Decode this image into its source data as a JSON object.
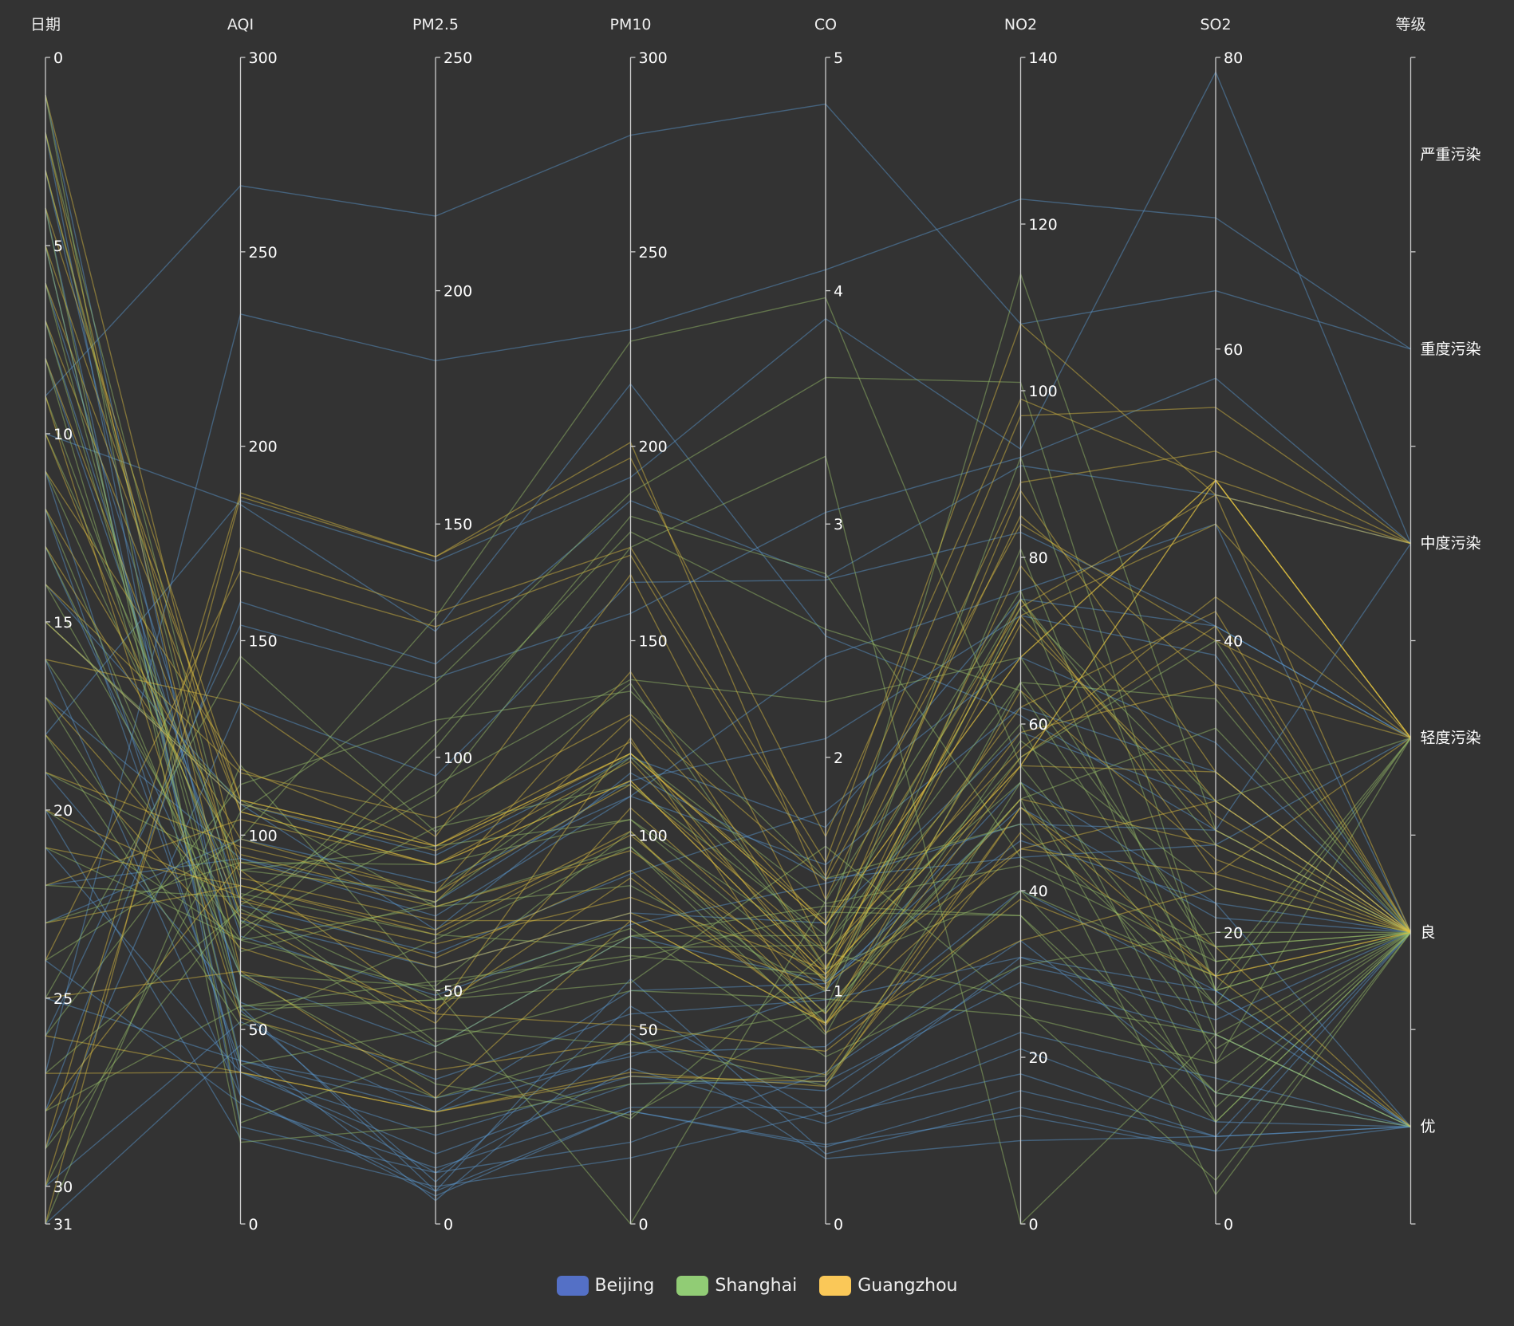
{
  "chart_data": {
    "type": "parallel",
    "axes": [
      {
        "key": "date",
        "name": "日期",
        "min": 0,
        "max": 31,
        "inverse": true,
        "ticks": [
          "0",
          "5",
          "10",
          "15",
          "20",
          "25",
          "30",
          "31"
        ]
      },
      {
        "key": "aqi",
        "name": "AQI",
        "min": 0,
        "max": 300,
        "ticks": [
          "0",
          "50",
          "100",
          "150",
          "200",
          "250",
          "300"
        ]
      },
      {
        "key": "pm25",
        "name": "PM2.5",
        "min": 0,
        "max": 250,
        "ticks": [
          "0",
          "50",
          "100",
          "150",
          "200",
          "250"
        ]
      },
      {
        "key": "pm10",
        "name": "PM10",
        "min": 0,
        "max": 300,
        "ticks": [
          "0",
          "50",
          "100",
          "150",
          "200",
          "250",
          "300"
        ]
      },
      {
        "key": "co",
        "name": "CO",
        "min": 0,
        "max": 5,
        "ticks": [
          "0",
          "1",
          "2",
          "3",
          "4",
          "5"
        ]
      },
      {
        "key": "no2",
        "name": "NO2",
        "min": 0,
        "max": 140,
        "ticks": [
          "0",
          "20",
          "40",
          "60",
          "80",
          "100",
          "120",
          "140"
        ]
      },
      {
        "key": "so2",
        "name": "SO2",
        "min": 0,
        "max": 80,
        "ticks": [
          "0",
          "20",
          "40",
          "60",
          "80"
        ]
      },
      {
        "key": "level",
        "name": "等级",
        "categorical": true,
        "categories": [
          "严重污染",
          "重度污染",
          "中度污染",
          "轻度污染",
          "良",
          "优"
        ]
      }
    ],
    "legend_position": "bottom-center",
    "pollution_colors": [
      "#93ce07",
      "#fbdb0f",
      "#fc7d02",
      "#fd0100",
      "#aa069f",
      "#ac3b2a"
    ],
    "series": [
      {
        "name": "Beijing",
        "legend_color": "#5470c6",
        "line_color": "#5b9bd5",
        "data": [
          [
            1,
            55,
            9,
            56,
            0.46,
            18,
            6,
            "良"
          ],
          [
            2,
            25,
            11,
            21,
            0.65,
            34,
            9,
            "优"
          ],
          [
            3,
            56,
            7,
            63,
            0.3,
            14,
            5,
            "良"
          ],
          [
            4,
            33,
            7,
            29,
            0.33,
            16,
            6,
            "优"
          ],
          [
            5,
            42,
            24,
            44,
            0.76,
            40,
            16,
            "优"
          ],
          [
            6,
            82,
            58,
            90,
            1.77,
            68,
            33,
            "良"
          ],
          [
            7,
            74,
            49,
            77,
            1.46,
            48,
            27,
            "良"
          ],
          [
            8,
            78,
            55,
            80,
            1.29,
            59,
            29,
            "良"
          ],
          [
            9,
            267,
            216,
            280,
            4.8,
            108,
            64,
            "重度污染"
          ],
          [
            10,
            185,
            127,
            216,
            2.52,
            61,
            27,
            "中度污染"
          ],
          [
            11,
            39,
            19,
            38,
            0.57,
            31,
            15,
            "优"
          ],
          [
            12,
            41,
            11,
            40,
            0.43,
            21,
            7,
            "优"
          ],
          [
            13,
            64,
            38,
            74,
            1.04,
            46,
            22,
            "良"
          ],
          [
            14,
            108,
            79,
            120,
            1.7,
            75,
            41,
            "轻度污染"
          ],
          [
            15,
            108,
            63,
            116,
            1.48,
            44,
            26,
            "轻度污染"
          ],
          [
            16,
            33,
            6,
            29,
            0.34,
            13,
            5,
            "优"
          ],
          [
            17,
            94,
            66,
            110,
            1.54,
            62,
            31,
            "良"
          ],
          [
            18,
            186,
            142,
            192,
            3.88,
            93,
            79,
            "中度污染"
          ],
          [
            19,
            57,
            31,
            54,
            0.96,
            32,
            14,
            "良"
          ],
          [
            20,
            22,
            8,
            17,
            0.48,
            23,
            10,
            "优"
          ],
          [
            21,
            39,
            15,
            36,
            0.61,
            29,
            13,
            "优"
          ],
          [
            22,
            94,
            69,
            114,
            2.08,
            73,
            39,
            "良"
          ],
          [
            23,
            99,
            73,
            110,
            2.43,
            76,
            48,
            "良"
          ],
          [
            24,
            31,
            12,
            30,
            0.5,
            32,
            16,
            "优"
          ],
          [
            25,
            42,
            27,
            43,
            1,
            53,
            22,
            "优"
          ],
          [
            26,
            154,
            117,
            157,
            3.05,
            92,
            58,
            "中度污染"
          ],
          [
            27,
            234,
            185,
            230,
            4.09,
            123,
            69,
            "重度污染"
          ],
          [
            28,
            160,
            120,
            186,
            2.77,
            91,
            50,
            "中度污染"
          ],
          [
            29,
            134,
            96,
            165,
            2.76,
            83,
            41,
            "轻度污染"
          ],
          [
            30,
            52,
            24,
            60,
            1.03,
            50,
            21,
            "良"
          ],
          [
            31,
            46,
            5,
            49,
            0.28,
            10,
            6,
            "优"
          ]
        ]
      },
      {
        "name": "Shanghai",
        "legend_color": "#91cc75",
        "line_color": "#9bc46a",
        "data": [
          [
            1,
            26,
            37,
            27,
            1.163,
            27,
            13,
            "优"
          ],
          [
            2,
            85,
            62,
            71,
            1.195,
            60,
            8,
            "良"
          ],
          [
            3,
            78,
            38,
            74,
            1.363,
            37,
            7,
            "良"
          ],
          [
            4,
            21,
            21,
            36,
            0.634,
            40,
            9,
            "优"
          ],
          [
            5,
            41,
            42,
            46,
            0.915,
            81,
            13,
            "优"
          ],
          [
            6,
            56,
            52,
            69,
            1.067,
            92,
            16,
            "良"
          ],
          [
            7,
            64,
            30,
            28,
            0.924,
            51,
            2,
            "良"
          ],
          [
            8,
            55,
            48,
            74,
            1.236,
            75,
            26,
            "良"
          ],
          [
            9,
            76,
            85,
            113,
            1.237,
            114,
            27,
            "良"
          ],
          [
            10,
            91,
            81,
            104,
            1.041,
            56,
            40,
            "良"
          ],
          [
            11,
            84,
            39,
            60,
            0.964,
            25,
            11,
            "良"
          ],
          [
            12,
            64,
            51,
            101,
            0.862,
            58,
            23,
            "良"
          ],
          [
            13,
            70,
            69,
            120,
            1.198,
            65,
            36,
            "良"
          ],
          [
            14,
            77,
            105,
            178,
            2.549,
            64,
            16,
            "良"
          ],
          [
            15,
            109,
            68,
            87,
            0.996,
            74,
            29,
            "轻度污染"
          ],
          [
            16,
            73,
            68,
            97,
            0.905,
            51,
            34,
            "良"
          ],
          [
            17,
            54,
            27,
            47,
            0.592,
            53,
            12,
            "良"
          ],
          [
            18,
            51,
            61,
            97,
            0.811,
            65,
            19,
            "良"
          ],
          [
            19,
            91,
            71,
            121,
            1.374,
            43,
            18,
            "良"
          ],
          [
            20,
            73,
            102,
            182,
            2.787,
            44,
            19,
            "良"
          ],
          [
            21,
            73,
            50,
            76,
            0.717,
            31,
            20,
            "良"
          ],
          [
            22,
            84,
            94,
            140,
            2.238,
            68,
            18,
            "良"
          ],
          [
            23,
            93,
            77,
            104,
            1.165,
            53,
            7,
            "良"
          ],
          [
            24,
            99,
            130,
            227,
            3.97,
            55,
            15,
            "良"
          ],
          [
            25,
            146,
            84,
            139,
            1.094,
            40,
            17,
            "轻度污染"
          ],
          [
            26,
            113,
            108,
            137,
            1.481,
            48,
            15,
            "轻度污染"
          ],
          [
            27,
            81,
            48,
            62,
            1.619,
            26,
            3,
            "良"
          ],
          [
            28,
            56,
            48,
            68,
            1.336,
            37,
            9,
            "良"
          ],
          [
            29,
            82,
            92,
            174,
            3.29,
            0,
            13,
            "良"
          ],
          [
            30,
            106,
            116,
            188,
            3.628,
            101,
            16,
            "轻度污染"
          ],
          [
            31,
            118,
            50,
            0,
            1.383,
            76,
            11,
            "轻度污染"
          ]
        ]
      },
      {
        "name": "Guangzhou",
        "legend_color": "#fac858",
        "line_color": "#e0c040",
        "data": [
          [
            1,
            91,
            45,
            125,
            0.82,
            34,
            23,
            "良"
          ],
          [
            2,
            65,
            27,
            78,
            0.86,
            45,
            29,
            "良"
          ],
          [
            3,
            83,
            60,
            84,
            1.09,
            73,
            27,
            "良"
          ],
          [
            4,
            109,
            81,
            121,
            1.28,
            68,
            51,
            "轻度污染"
          ],
          [
            5,
            106,
            77,
            114,
            1.07,
            55,
            51,
            "轻度污染"
          ],
          [
            6,
            109,
            81,
            121,
            1.28,
            68,
            51,
            "轻度污染"
          ],
          [
            7,
            106,
            77,
            114,
            1.07,
            55,
            51,
            "轻度污染"
          ],
          [
            8,
            89,
            65,
            78,
            0.86,
            51,
            26,
            "良"
          ],
          [
            9,
            53,
            33,
            47,
            0.64,
            50,
            17,
            "良"
          ],
          [
            10,
            80,
            55,
            80,
            1.01,
            75,
            24,
            "良"
          ],
          [
            11,
            117,
            81,
            124,
            1.03,
            45,
            24,
            "轻度污染"
          ],
          [
            12,
            99,
            71,
            142,
            1.1,
            62,
            42,
            "良"
          ],
          [
            13,
            95,
            69,
            130,
            1.28,
            74,
            50,
            "良"
          ],
          [
            14,
            116,
            87,
            131,
            1.47,
            84,
            40,
            "轻度污染"
          ],
          [
            15,
            108,
            80,
            121,
            1.3,
            85,
            37,
            "轻度污染"
          ],
          [
            16,
            134,
            83,
            167,
            1.16,
            57,
            43,
            "轻度污染"
          ],
          [
            17,
            79,
            43,
            107,
            1.05,
            59,
            37,
            "良"
          ],
          [
            18,
            71,
            46,
            89,
            0.86,
            64,
            25,
            "良"
          ],
          [
            19,
            97,
            71,
            113,
            1.17,
            88,
            31,
            "良"
          ],
          [
            20,
            84,
            57,
            91,
            0.85,
            55,
            31,
            "良"
          ],
          [
            21,
            87,
            63,
            101,
            0.9,
            56,
            41,
            "良"
          ],
          [
            22,
            104,
            77,
            119,
            1.09,
            73,
            48,
            "轻度污染"
          ],
          [
            23,
            87,
            62,
            100,
            1,
            72,
            28,
            "良"
          ],
          [
            24,
            168,
            128,
            172,
            1.49,
            97,
            56,
            "中度污染"
          ],
          [
            25,
            65,
            45,
            51,
            0.74,
            39,
            17,
            "良"
          ],
          [
            26,
            39,
            24,
            38,
            0.61,
            47,
            17,
            "优"
          ],
          [
            27,
            39,
            24,
            39,
            0.59,
            50,
            19,
            "优"
          ],
          [
            28,
            93,
            68,
            96,
            1.05,
            79,
            29,
            "良"
          ],
          [
            29,
            188,
            143,
            197,
            1.66,
            99,
            51,
            "中度污染"
          ],
          [
            30,
            174,
            131,
            174,
            1.55,
            108,
            50,
            "中度污染"
          ],
          [
            31,
            187,
            143,
            201,
            1.39,
            89,
            53,
            "中度污染"
          ]
        ]
      }
    ]
  }
}
